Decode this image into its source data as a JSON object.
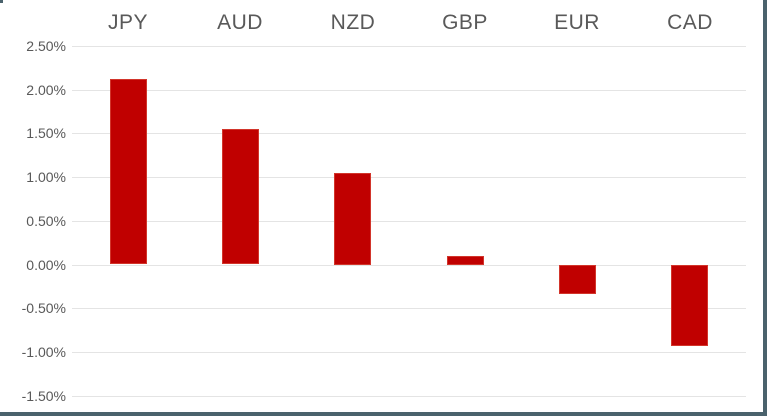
{
  "chart_data": {
    "type": "bar",
    "title": "",
    "xlabel": "",
    "ylabel": "",
    "categories": [
      "JPY",
      "AUD",
      "NZD",
      "GBP",
      "EUR",
      "CAD"
    ],
    "values": [
      2.12,
      1.55,
      1.05,
      0.1,
      -0.33,
      -0.93
    ],
    "value_unit": "%",
    "ylim": [
      -1.5,
      2.5
    ],
    "y_tick_step": 0.5,
    "y_ticks": [
      "2.50%",
      "2.00%",
      "1.50%",
      "1.00%",
      "0.50%",
      "0.00%",
      "-0.50%",
      "-1.00%",
      "-1.50%"
    ],
    "grid": true,
    "legend_position": "none",
    "category_label_position": "top",
    "colors": {
      "bar_fill": "#C00000",
      "bar_border": "#D2352B",
      "gridline": "#E4E4E4",
      "label_text": "#595959",
      "frame_border": "#4A626C",
      "background": "#FFFFFF"
    }
  }
}
